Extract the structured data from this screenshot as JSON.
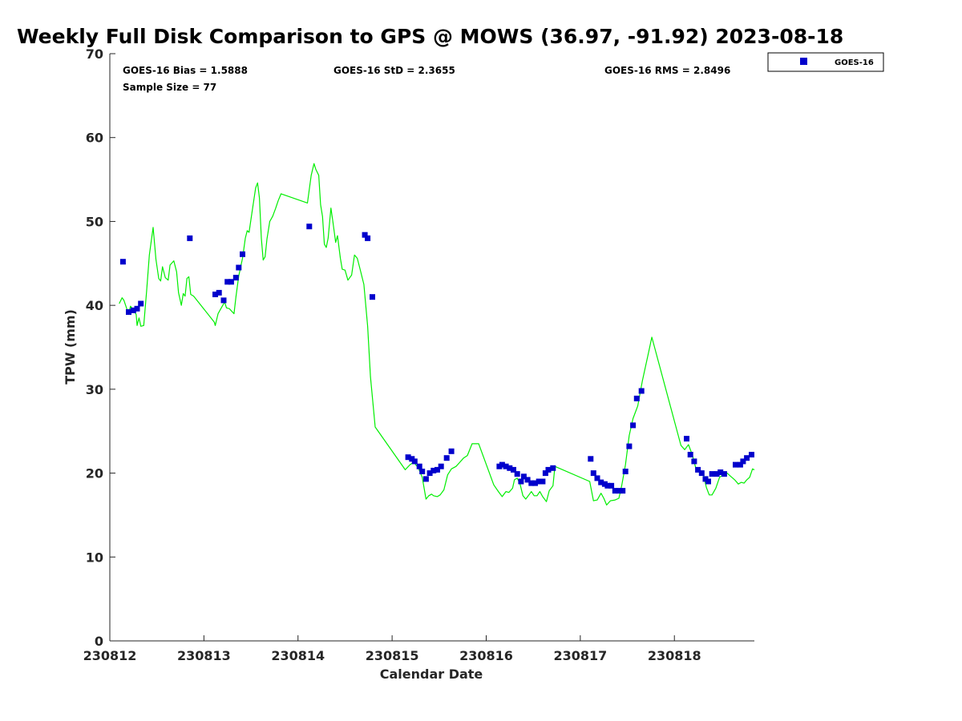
{
  "chart_data": {
    "type": "scatter",
    "title": "Weekly Full Disk Comparison to GPS @ MOWS (36.97, -91.92) 2023-08-18",
    "xlabel": "Calendar Date",
    "ylabel": "TPW (mm)",
    "xlim": [
      0,
      6.85
    ],
    "ylim": [
      0,
      70
    ],
    "x_ticks": [
      {
        "value": 0,
        "label": "230812"
      },
      {
        "value": 1,
        "label": "230813"
      },
      {
        "value": 2,
        "label": "230814"
      },
      {
        "value": 3,
        "label": "230815"
      },
      {
        "value": 4,
        "label": "230816"
      },
      {
        "value": 5,
        "label": "230817"
      },
      {
        "value": 6,
        "label": "230818"
      }
    ],
    "y_ticks": [
      {
        "value": 0,
        "label": "0"
      },
      {
        "value": 10,
        "label": "10"
      },
      {
        "value": 20,
        "label": "20"
      },
      {
        "value": 30,
        "label": "30"
      },
      {
        "value": 40,
        "label": "40"
      },
      {
        "value": 50,
        "label": "50"
      },
      {
        "value": 60,
        "label": "60"
      },
      {
        "value": 70,
        "label": "70"
      }
    ],
    "grid": false,
    "legend": {
      "position": "outside-top-right",
      "entries": [
        "GOES-16"
      ]
    },
    "stats": {
      "bias": "GOES-16 Bias = 1.5888",
      "std": "GOES-16 StD = 2.3655",
      "rms": "GOES-16 RMS = 2.8496",
      "sample": "Sample Size = 77"
    },
    "series": [
      {
        "name": "GOES-16",
        "kind": "scatter",
        "marker": "square",
        "color": "#0000cc",
        "points": [
          [
            0.14,
            45.2
          ],
          [
            0.2,
            39.2
          ],
          [
            0.25,
            39.4
          ],
          [
            0.29,
            39.6
          ],
          [
            0.33,
            40.2
          ],
          [
            0.85,
            48.0
          ],
          [
            1.12,
            41.3
          ],
          [
            1.16,
            41.5
          ],
          [
            1.21,
            40.6
          ],
          [
            1.25,
            42.8
          ],
          [
            1.29,
            42.8
          ],
          [
            1.34,
            43.3
          ],
          [
            1.37,
            44.5
          ],
          [
            1.41,
            46.1
          ],
          [
            2.12,
            49.4
          ],
          [
            2.71,
            48.4
          ],
          [
            2.74,
            48.0
          ],
          [
            2.79,
            41.0
          ],
          [
            3.17,
            21.9
          ],
          [
            3.21,
            21.7
          ],
          [
            3.24,
            21.4
          ],
          [
            3.29,
            20.8
          ],
          [
            3.32,
            20.2
          ],
          [
            3.36,
            19.3
          ],
          [
            3.4,
            20.0
          ],
          [
            3.44,
            20.3
          ],
          [
            3.48,
            20.4
          ],
          [
            3.52,
            20.8
          ],
          [
            3.58,
            21.8
          ],
          [
            3.63,
            22.6
          ],
          [
            4.14,
            20.8
          ],
          [
            4.17,
            21.0
          ],
          [
            4.21,
            20.8
          ],
          [
            4.25,
            20.6
          ],
          [
            4.29,
            20.4
          ],
          [
            4.33,
            19.9
          ],
          [
            4.37,
            19.0
          ],
          [
            4.4,
            19.6
          ],
          [
            4.44,
            19.2
          ],
          [
            4.48,
            18.8
          ],
          [
            4.52,
            18.8
          ],
          [
            4.56,
            19.0
          ],
          [
            4.6,
            19.0
          ],
          [
            4.63,
            20.0
          ],
          [
            4.66,
            20.4
          ],
          [
            4.71,
            20.6
          ],
          [
            5.11,
            21.7
          ],
          [
            5.14,
            20.0
          ],
          [
            5.18,
            19.4
          ],
          [
            5.22,
            18.9
          ],
          [
            5.26,
            18.7
          ],
          [
            5.29,
            18.5
          ],
          [
            5.33,
            18.5
          ],
          [
            5.37,
            17.9
          ],
          [
            5.41,
            17.9
          ],
          [
            5.45,
            17.9
          ],
          [
            5.48,
            20.2
          ],
          [
            5.52,
            23.2
          ],
          [
            5.56,
            25.7
          ],
          [
            5.6,
            28.9
          ],
          [
            5.65,
            29.8
          ],
          [
            6.13,
            24.1
          ],
          [
            6.17,
            22.2
          ],
          [
            6.21,
            21.4
          ],
          [
            6.25,
            20.4
          ],
          [
            6.29,
            20.0
          ],
          [
            6.33,
            19.3
          ],
          [
            6.36,
            19.0
          ],
          [
            6.4,
            19.9
          ],
          [
            6.45,
            19.9
          ],
          [
            6.49,
            20.1
          ],
          [
            6.53,
            19.9
          ],
          [
            6.65,
            21.0
          ],
          [
            6.7,
            21.0
          ],
          [
            6.73,
            21.4
          ],
          [
            6.77,
            21.8
          ],
          [
            6.82,
            22.2
          ]
        ]
      },
      {
        "name": "GPS",
        "kind": "line",
        "color": "#00ee00",
        "points": [
          [
            0.1,
            40.2
          ],
          [
            0.13,
            40.9
          ],
          [
            0.15,
            40.6
          ],
          [
            0.18,
            39.6
          ],
          [
            0.2,
            39.0
          ],
          [
            0.22,
            39.9
          ],
          [
            0.24,
            39.6
          ],
          [
            0.26,
            39.3
          ],
          [
            0.28,
            38.9
          ],
          [
            0.29,
            37.6
          ],
          [
            0.31,
            38.5
          ],
          [
            0.33,
            37.5
          ],
          [
            0.36,
            37.6
          ],
          [
            0.39,
            41.6
          ],
          [
            0.42,
            46.0
          ],
          [
            0.46,
            49.3
          ],
          [
            0.49,
            45.5
          ],
          [
            0.52,
            43.2
          ],
          [
            0.54,
            42.9
          ],
          [
            0.56,
            44.6
          ],
          [
            0.59,
            43.3
          ],
          [
            0.62,
            43.0
          ],
          [
            0.64,
            44.8
          ],
          [
            0.68,
            45.3
          ],
          [
            0.71,
            44.0
          ],
          [
            0.73,
            41.5
          ],
          [
            0.76,
            40.0
          ],
          [
            0.78,
            41.4
          ],
          [
            0.8,
            41.1
          ],
          [
            0.82,
            43.2
          ],
          [
            0.84,
            43.4
          ],
          [
            0.86,
            41.3
          ],
          [
            0.89,
            41.1
          ],
          [
            1.11,
            38.0
          ],
          [
            1.12,
            37.6
          ],
          [
            1.15,
            39.0
          ],
          [
            1.19,
            39.8
          ],
          [
            1.22,
            40.4
          ],
          [
            1.24,
            39.7
          ],
          [
            1.27,
            39.6
          ],
          [
            1.32,
            39.0
          ],
          [
            1.34,
            41.0
          ],
          [
            1.37,
            43.5
          ],
          [
            1.41,
            45.6
          ],
          [
            1.44,
            48.0
          ],
          [
            1.46,
            48.9
          ],
          [
            1.48,
            48.7
          ],
          [
            1.51,
            51.0
          ],
          [
            1.55,
            54.0
          ],
          [
            1.57,
            54.6
          ],
          [
            1.59,
            52.8
          ],
          [
            1.61,
            48.0
          ],
          [
            1.63,
            45.4
          ],
          [
            1.65,
            45.8
          ],
          [
            1.67,
            47.9
          ],
          [
            1.7,
            50.0
          ],
          [
            1.73,
            50.6
          ],
          [
            1.76,
            51.5
          ],
          [
            1.79,
            52.5
          ],
          [
            1.82,
            53.3
          ],
          [
            2.1,
            52.2
          ],
          [
            2.14,
            55.5
          ],
          [
            2.17,
            56.9
          ],
          [
            2.19,
            56.2
          ],
          [
            2.22,
            55.5
          ],
          [
            2.24,
            52.0
          ],
          [
            2.26,
            50.6
          ],
          [
            2.28,
            47.3
          ],
          [
            2.3,
            46.9
          ],
          [
            2.32,
            48.0
          ],
          [
            2.35,
            51.6
          ],
          [
            2.37,
            50.0
          ],
          [
            2.4,
            47.5
          ],
          [
            2.42,
            48.3
          ],
          [
            2.45,
            45.6
          ],
          [
            2.47,
            44.3
          ],
          [
            2.5,
            44.2
          ],
          [
            2.53,
            43.0
          ],
          [
            2.57,
            43.6
          ],
          [
            2.6,
            46.0
          ],
          [
            2.63,
            45.6
          ],
          [
            2.66,
            44.3
          ],
          [
            2.7,
            42.5
          ],
          [
            2.74,
            37.5
          ],
          [
            2.77,
            31.5
          ],
          [
            2.82,
            25.5
          ],
          [
            3.14,
            20.4
          ],
          [
            3.19,
            21.0
          ],
          [
            3.23,
            21.3
          ],
          [
            3.28,
            20.6
          ],
          [
            3.32,
            19.5
          ],
          [
            3.36,
            16.9
          ],
          [
            3.39,
            17.3
          ],
          [
            3.42,
            17.5
          ],
          [
            3.44,
            17.3
          ],
          [
            3.48,
            17.2
          ],
          [
            3.51,
            17.4
          ],
          [
            3.55,
            18.0
          ],
          [
            3.59,
            19.8
          ],
          [
            3.63,
            20.5
          ],
          [
            3.68,
            20.8
          ],
          [
            3.72,
            21.3
          ],
          [
            3.76,
            21.8
          ],
          [
            3.8,
            22.1
          ],
          [
            3.85,
            23.5
          ],
          [
            3.92,
            23.5
          ],
          [
            4.08,
            18.6
          ],
          [
            4.13,
            17.8
          ],
          [
            4.17,
            17.2
          ],
          [
            4.21,
            17.8
          ],
          [
            4.24,
            17.7
          ],
          [
            4.28,
            18.2
          ],
          [
            4.3,
            19.2
          ],
          [
            4.33,
            19.4
          ],
          [
            4.36,
            18.7
          ],
          [
            4.39,
            17.3
          ],
          [
            4.42,
            16.9
          ],
          [
            4.46,
            17.5
          ],
          [
            4.48,
            17.8
          ],
          [
            4.51,
            17.3
          ],
          [
            4.54,
            17.3
          ],
          [
            4.57,
            17.8
          ],
          [
            4.6,
            17.2
          ],
          [
            4.64,
            16.6
          ],
          [
            4.67,
            17.9
          ],
          [
            4.71,
            18.5
          ],
          [
            4.73,
            20.8
          ],
          [
            5.1,
            19.0
          ],
          [
            5.14,
            16.7
          ],
          [
            5.18,
            16.8
          ],
          [
            5.22,
            17.6
          ],
          [
            5.25,
            17.0
          ],
          [
            5.28,
            16.2
          ],
          [
            5.32,
            16.7
          ],
          [
            5.37,
            16.8
          ],
          [
            5.41,
            17.0
          ],
          [
            5.44,
            18.5
          ],
          [
            5.48,
            21.0
          ],
          [
            5.52,
            24.5
          ],
          [
            5.56,
            26.5
          ],
          [
            5.61,
            28.0
          ],
          [
            5.66,
            31.0
          ],
          [
            5.73,
            34.6
          ],
          [
            5.76,
            36.2
          ],
          [
            6.07,
            23.3
          ],
          [
            6.11,
            22.8
          ],
          [
            6.15,
            23.4
          ],
          [
            6.19,
            22.2
          ],
          [
            6.23,
            20.5
          ],
          [
            6.27,
            20.2
          ],
          [
            6.31,
            19.8
          ],
          [
            6.34,
            18.3
          ],
          [
            6.37,
            17.4
          ],
          [
            6.4,
            17.4
          ],
          [
            6.44,
            18.2
          ],
          [
            6.48,
            19.5
          ],
          [
            6.52,
            19.8
          ],
          [
            6.56,
            20.0
          ],
          [
            6.6,
            19.6
          ],
          [
            6.64,
            19.2
          ],
          [
            6.68,
            18.7
          ],
          [
            6.71,
            18.9
          ],
          [
            6.74,
            18.8
          ],
          [
            6.77,
            19.2
          ],
          [
            6.8,
            19.5
          ],
          [
            6.83,
            20.5
          ],
          [
            6.85,
            20.4
          ]
        ]
      }
    ]
  }
}
